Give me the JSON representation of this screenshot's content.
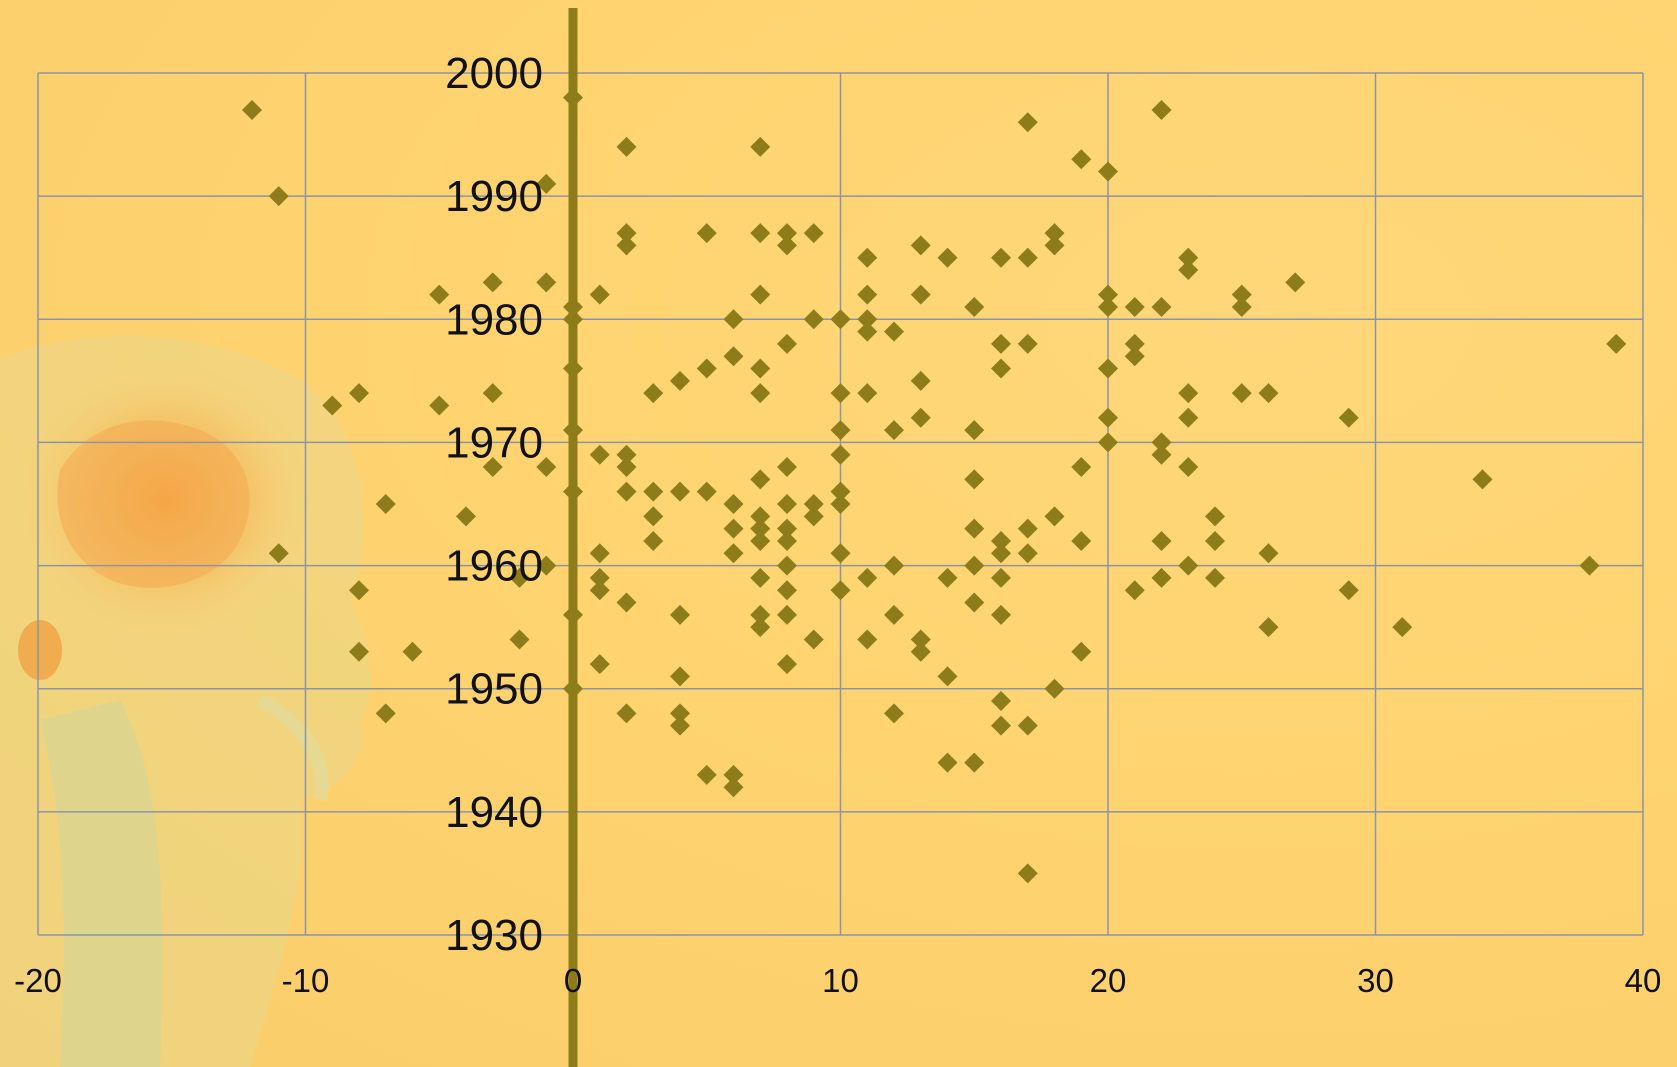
{
  "colors": {
    "background": "#ffd470",
    "grid": "#8c94a8",
    "marker": "#8c7d1a",
    "y_axis_line": "#8c7d1a",
    "tick_text": "#111111"
  },
  "background_image": "xray-skull-illustration",
  "chart_data": {
    "type": "scatter",
    "title": "",
    "xlabel": "",
    "ylabel": "",
    "xlim": [
      -20,
      40
    ],
    "ylim": [
      1930,
      2000
    ],
    "x_ticks": [
      -20,
      -10,
      0,
      10,
      20,
      30,
      40
    ],
    "y_ticks": [
      1930,
      1940,
      1950,
      1960,
      1970,
      1980,
      1990,
      2000
    ],
    "x_tick_labels": [
      "-20",
      "-10",
      "0",
      "10",
      "20",
      "30",
      "40"
    ],
    "y_tick_labels": [
      "1930",
      "1940",
      "1950",
      "1960",
      "1970",
      "1980",
      "1990",
      "2000"
    ],
    "grid": true,
    "marker": "diamond",
    "points": [
      [
        -12,
        1997
      ],
      [
        -11,
        1990
      ],
      [
        -11,
        1961
      ],
      [
        -9,
        1973
      ],
      [
        -8,
        1974
      ],
      [
        -8,
        1958
      ],
      [
        -8,
        1953
      ],
      [
        -7,
        1965
      ],
      [
        -7,
        1948
      ],
      [
        -6,
        1953
      ],
      [
        -5,
        1982
      ],
      [
        -5,
        1973
      ],
      [
        -4,
        1964
      ],
      [
        -3,
        1983
      ],
      [
        -3,
        1974
      ],
      [
        -3,
        1968
      ],
      [
        -2,
        1959
      ],
      [
        -2,
        1954
      ],
      [
        -1,
        1991
      ],
      [
        -1,
        1983
      ],
      [
        -1,
        1968
      ],
      [
        -1,
        1960
      ],
      [
        0,
        1998
      ],
      [
        0,
        1981
      ],
      [
        0,
        1980
      ],
      [
        0,
        1976
      ],
      [
        0,
        1971
      ],
      [
        0,
        1966
      ],
      [
        0,
        1956
      ],
      [
        0,
        1950
      ],
      [
        1,
        1982
      ],
      [
        1,
        1969
      ],
      [
        1,
        1961
      ],
      [
        1,
        1959
      ],
      [
        1,
        1958
      ],
      [
        1,
        1952
      ],
      [
        2,
        1994
      ],
      [
        2,
        1987
      ],
      [
        2,
        1986
      ],
      [
        2,
        1969
      ],
      [
        2,
        1968
      ],
      [
        2,
        1966
      ],
      [
        2,
        1957
      ],
      [
        2,
        1948
      ],
      [
        3,
        1974
      ],
      [
        3,
        1966
      ],
      [
        3,
        1964
      ],
      [
        3,
        1962
      ],
      [
        4,
        1975
      ],
      [
        4,
        1966
      ],
      [
        4,
        1956
      ],
      [
        4,
        1951
      ],
      [
        4,
        1948
      ],
      [
        4,
        1947
      ],
      [
        5,
        1987
      ],
      [
        5,
        1976
      ],
      [
        5,
        1966
      ],
      [
        5,
        1943
      ],
      [
        6,
        1980
      ],
      [
        6,
        1977
      ],
      [
        6,
        1965
      ],
      [
        6,
        1963
      ],
      [
        6,
        1961
      ],
      [
        6,
        1943
      ],
      [
        6,
        1942
      ],
      [
        7,
        1994
      ],
      [
        7,
        1987
      ],
      [
        7,
        1982
      ],
      [
        7,
        1976
      ],
      [
        7,
        1974
      ],
      [
        7,
        1967
      ],
      [
        7,
        1964
      ],
      [
        7,
        1963
      ],
      [
        7,
        1962
      ],
      [
        7,
        1959
      ],
      [
        7,
        1956
      ],
      [
        7,
        1955
      ],
      [
        8,
        1987
      ],
      [
        8,
        1986
      ],
      [
        8,
        1978
      ],
      [
        8,
        1968
      ],
      [
        8,
        1965
      ],
      [
        8,
        1963
      ],
      [
        8,
        1962
      ],
      [
        8,
        1960
      ],
      [
        8,
        1958
      ],
      [
        8,
        1956
      ],
      [
        8,
        1952
      ],
      [
        9,
        1987
      ],
      [
        9,
        1980
      ],
      [
        9,
        1965
      ],
      [
        9,
        1964
      ],
      [
        9,
        1954
      ],
      [
        10,
        1980
      ],
      [
        10,
        1974
      ],
      [
        10,
        1971
      ],
      [
        10,
        1969
      ],
      [
        10,
        1966
      ],
      [
        10,
        1965
      ],
      [
        10,
        1961
      ],
      [
        10,
        1958
      ],
      [
        11,
        1985
      ],
      [
        11,
        1982
      ],
      [
        11,
        1980
      ],
      [
        11,
        1979
      ],
      [
        11,
        1974
      ],
      [
        11,
        1959
      ],
      [
        11,
        1954
      ],
      [
        12,
        1979
      ],
      [
        12,
        1971
      ],
      [
        12,
        1960
      ],
      [
        12,
        1956
      ],
      [
        12,
        1948
      ],
      [
        13,
        1986
      ],
      [
        13,
        1982
      ],
      [
        13,
        1975
      ],
      [
        13,
        1972
      ],
      [
        13,
        1954
      ],
      [
        13,
        1953
      ],
      [
        14,
        1985
      ],
      [
        14,
        1959
      ],
      [
        14,
        1951
      ],
      [
        14,
        1944
      ],
      [
        15,
        1981
      ],
      [
        15,
        1971
      ],
      [
        15,
        1967
      ],
      [
        15,
        1963
      ],
      [
        15,
        1960
      ],
      [
        15,
        1957
      ],
      [
        15,
        1944
      ],
      [
        16,
        1985
      ],
      [
        16,
        1978
      ],
      [
        16,
        1976
      ],
      [
        16,
        1962
      ],
      [
        16,
        1961
      ],
      [
        16,
        1959
      ],
      [
        16,
        1956
      ],
      [
        16,
        1949
      ],
      [
        16,
        1947
      ],
      [
        17,
        1996
      ],
      [
        17,
        1985
      ],
      [
        17,
        1978
      ],
      [
        17,
        1963
      ],
      [
        17,
        1961
      ],
      [
        17,
        1947
      ],
      [
        17,
        1935
      ],
      [
        18,
        1987
      ],
      [
        18,
        1986
      ],
      [
        18,
        1964
      ],
      [
        18,
        1950
      ],
      [
        19,
        1993
      ],
      [
        19,
        1968
      ],
      [
        19,
        1962
      ],
      [
        19,
        1953
      ],
      [
        20,
        1992
      ],
      [
        20,
        1982
      ],
      [
        20,
        1981
      ],
      [
        20,
        1976
      ],
      [
        20,
        1972
      ],
      [
        20,
        1970
      ],
      [
        21,
        1981
      ],
      [
        21,
        1978
      ],
      [
        21,
        1977
      ],
      [
        21,
        1958
      ],
      [
        22,
        1997
      ],
      [
        22,
        1981
      ],
      [
        22,
        1970
      ],
      [
        22,
        1969
      ],
      [
        22,
        1962
      ],
      [
        22,
        1959
      ],
      [
        23,
        1985
      ],
      [
        23,
        1984
      ],
      [
        23,
        1974
      ],
      [
        23,
        1972
      ],
      [
        23,
        1968
      ],
      [
        23,
        1960
      ],
      [
        24,
        1964
      ],
      [
        24,
        1962
      ],
      [
        24,
        1959
      ],
      [
        25,
        1982
      ],
      [
        25,
        1981
      ],
      [
        25,
        1974
      ],
      [
        26,
        1974
      ],
      [
        26,
        1961
      ],
      [
        26,
        1955
      ],
      [
        27,
        1983
      ],
      [
        29,
        1972
      ],
      [
        29,
        1958
      ],
      [
        31,
        1955
      ],
      [
        34,
        1967
      ],
      [
        38,
        1960
      ],
      [
        39,
        1978
      ]
    ]
  }
}
